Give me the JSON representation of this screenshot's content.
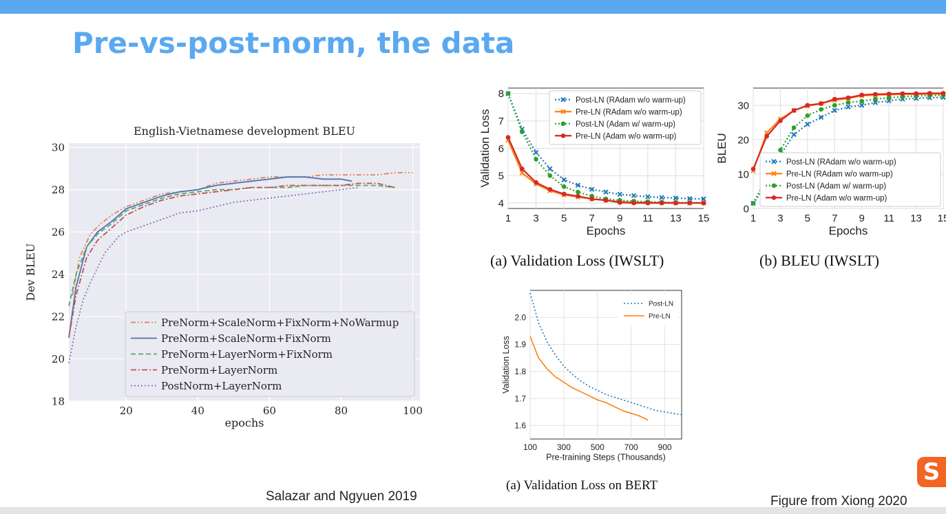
{
  "slide": {
    "title": "Pre-vs-post-norm, the data",
    "left_caption": "Salazar and Ngyuen 2019",
    "right_caption": "Figure from Xiong 2020",
    "logo_letter": "S"
  },
  "chart_data": [
    {
      "id": "dev_bleu",
      "type": "line",
      "title": "English-Vietnamese development BLEU",
      "xlabel": "epochs",
      "ylabel": "Dev BLEU",
      "xlim": [
        4,
        102
      ],
      "ylim": [
        18,
        30.2
      ],
      "xticks": [
        20,
        40,
        60,
        80,
        100
      ],
      "yticks": [
        18,
        20,
        22,
        24,
        26,
        28,
        30
      ],
      "grid": true,
      "background": "#eaeaf2",
      "legend_position": "lower-right",
      "series": [
        {
          "name": "PreNorm+ScaleNorm+FixNorm+NoWarmup",
          "color": "#dd8452",
          "dash": "dashdot-dot",
          "x": [
            5,
            7,
            10,
            13,
            16,
            20,
            25,
            30,
            35,
            40,
            45,
            50,
            55,
            60,
            65,
            70,
            75,
            80,
            85,
            90,
            95,
            100
          ],
          "y": [
            23.0,
            24.8,
            25.9,
            26.4,
            26.8,
            27.2,
            27.5,
            27.8,
            27.9,
            28.0,
            28.3,
            28.4,
            28.5,
            28.6,
            28.6,
            28.6,
            28.7,
            28.7,
            28.7,
            28.7,
            28.8,
            28.8
          ]
        },
        {
          "name": "PreNorm+ScaleNorm+FixNorm",
          "color": "#4c72b0",
          "dash": "solid",
          "x": [
            4,
            6,
            9,
            12,
            16,
            20,
            25,
            30,
            35,
            40,
            45,
            50,
            55,
            60,
            65,
            70,
            75,
            80,
            83
          ],
          "y": [
            21.0,
            23.4,
            25.3,
            26.0,
            26.5,
            27.1,
            27.4,
            27.7,
            27.9,
            28.0,
            28.2,
            28.3,
            28.4,
            28.5,
            28.6,
            28.6,
            28.5,
            28.5,
            28.4
          ]
        },
        {
          "name": "PreNorm+LayerNorm+FixNorm",
          "color": "#55a868",
          "dash": "dashed",
          "x": [
            4,
            6,
            9,
            12,
            16,
            20,
            25,
            30,
            35,
            40,
            45,
            50,
            55,
            60,
            65,
            70,
            75,
            80,
            85,
            90,
            95
          ],
          "y": [
            22.5,
            24.0,
            25.3,
            25.9,
            26.4,
            27.0,
            27.3,
            27.6,
            27.8,
            27.9,
            28.0,
            28.0,
            28.1,
            28.1,
            28.1,
            28.2,
            28.2,
            28.2,
            28.2,
            28.2,
            28.1
          ]
        },
        {
          "name": "PreNorm+LayerNorm",
          "color": "#c44e52",
          "dash": "dashdot",
          "x": [
            4,
            6,
            9,
            12,
            16,
            20,
            25,
            30,
            35,
            40,
            45,
            50,
            55,
            60,
            65,
            70,
            75,
            80,
            85,
            90,
            95
          ],
          "y": [
            21.0,
            23.0,
            24.8,
            25.6,
            26.2,
            26.8,
            27.2,
            27.5,
            27.7,
            27.8,
            27.9,
            28.0,
            28.1,
            28.1,
            28.2,
            28.2,
            28.2,
            28.2,
            28.3,
            28.3,
            28.1
          ]
        },
        {
          "name": "PostNorm+LayerNorm",
          "color": "#8172b2",
          "dash": "dotted",
          "x": [
            4,
            6,
            8,
            10,
            12,
            14,
            16,
            18,
            20,
            25,
            30,
            35,
            40,
            45,
            50,
            55,
            60,
            65,
            70,
            75,
            80,
            85
          ],
          "y": [
            19.8,
            21.5,
            22.8,
            23.6,
            24.3,
            25.0,
            25.4,
            25.8,
            26.0,
            26.3,
            26.6,
            26.9,
            27.0,
            27.2,
            27.4,
            27.5,
            27.6,
            27.7,
            27.8,
            27.9,
            28.0,
            28.1
          ]
        }
      ]
    },
    {
      "id": "iwslt_loss",
      "type": "line",
      "caption": "(a)  Validation Loss (IWSLT)",
      "xlabel": "Epochs",
      "ylabel": "Validation Loss",
      "xlim": [
        1,
        15
      ],
      "ylim": [
        3.8,
        8.2
      ],
      "xticks": [
        1,
        3,
        5,
        7,
        9,
        11,
        13,
        15
      ],
      "yticks": [
        4,
        5,
        6,
        7,
        8
      ],
      "grid": true,
      "legend_position": "upper-right",
      "series": [
        {
          "name": "Post-LN (RAdam w/o warm-up)",
          "color": "#1f77b4",
          "dash": "dotted",
          "marker": "x",
          "x": [
            1,
            2,
            3,
            4,
            5,
            6,
            7,
            8,
            9,
            10,
            11,
            12,
            13,
            14,
            15
          ],
          "y": [
            8.0,
            6.7,
            5.85,
            5.25,
            4.85,
            4.65,
            4.5,
            4.4,
            4.32,
            4.27,
            4.23,
            4.2,
            4.18,
            4.16,
            4.15
          ]
        },
        {
          "name": "Pre-LN (RAdam w/o warm-up)",
          "color": "#ff7f0e",
          "dash": "solid",
          "marker": "x",
          "x": [
            1,
            2,
            3,
            4,
            5,
            6,
            7,
            8,
            9,
            10,
            11,
            12,
            13,
            14,
            15
          ],
          "y": [
            6.3,
            5.1,
            4.7,
            4.45,
            4.3,
            4.22,
            4.15,
            4.1,
            4.05,
            4.03,
            4.02,
            4.01,
            4.0,
            4.0,
            4.0
          ]
        },
        {
          "name": "Post-LN (Adam w/ warm-up)",
          "color": "#2ca02c",
          "dash": "dotted",
          "marker": "o",
          "x": [
            1,
            2,
            3,
            4,
            5,
            6,
            7,
            8,
            9,
            10,
            11,
            12,
            13,
            14,
            15
          ],
          "y": [
            8.0,
            6.6,
            5.6,
            5.0,
            4.6,
            4.4,
            4.25,
            4.15,
            4.1,
            4.07,
            4.05,
            4.03,
            4.02,
            4.01,
            4.0
          ]
        },
        {
          "name": "Pre-LN (Adam w/o warm-up)",
          "color": "#d62728",
          "dash": "solid",
          "marker": "o",
          "x": [
            1,
            2,
            3,
            4,
            5,
            6,
            7,
            8,
            9,
            10,
            11,
            12,
            13,
            14,
            15
          ],
          "y": [
            6.4,
            5.25,
            4.75,
            4.5,
            4.33,
            4.25,
            4.15,
            4.1,
            4.02,
            4.0,
            4.0,
            4.0,
            4.0,
            4.0,
            4.0
          ]
        }
      ]
    },
    {
      "id": "iwslt_bleu",
      "type": "line",
      "caption": "(b)  BLEU (IWSLT)",
      "xlabel": "Epochs",
      "ylabel": "BLEU",
      "xlim": [
        1,
        15
      ],
      "ylim": [
        0,
        35
      ],
      "xticks": [
        1,
        3,
        5,
        7,
        9,
        11,
        13,
        15
      ],
      "yticks": [
        0,
        10,
        20,
        30
      ],
      "grid": true,
      "legend_position": "lower-right",
      "series": [
        {
          "name": "Post-LN (RAdam w/o warm-up)",
          "color": "#1f77b4",
          "dash": "dotted",
          "marker": "x",
          "x": [
            1,
            2,
            3,
            4,
            5,
            6,
            7,
            8,
            9,
            10,
            11,
            12,
            13,
            14,
            15
          ],
          "y": [
            1.5,
            7.0,
            15.5,
            21.5,
            24.5,
            26.5,
            28.5,
            29.5,
            30.0,
            30.8,
            31.3,
            31.8,
            32.0,
            32.2,
            32.3
          ]
        },
        {
          "name": "Pre-LN (RAdam w/o warm-up)",
          "color": "#ff7f0e",
          "dash": "solid",
          "marker": "x",
          "x": [
            1,
            2,
            3,
            4,
            5,
            6,
            7,
            8,
            9,
            10,
            11,
            12,
            13,
            14,
            15
          ],
          "y": [
            11.0,
            22.0,
            26.0,
            28.5,
            29.8,
            30.5,
            31.5,
            32.0,
            32.8,
            33.0,
            33.1,
            33.2,
            33.2,
            33.3,
            33.3
          ]
        },
        {
          "name": "Post-LN (Adam w/ warm-up)",
          "color": "#2ca02c",
          "dash": "dotted",
          "marker": "o",
          "x": [
            1,
            2,
            3,
            4,
            5,
            6,
            7,
            8,
            9,
            10,
            11,
            12,
            13,
            14,
            15
          ],
          "y": [
            1.5,
            9.0,
            17.0,
            23.5,
            27.0,
            28.8,
            30.0,
            30.8,
            31.2,
            31.8,
            32.2,
            32.5,
            32.7,
            32.8,
            32.9
          ]
        },
        {
          "name": "Pre-LN (Adam w/o warm-up)",
          "color": "#d62728",
          "dash": "solid",
          "marker": "o",
          "x": [
            1,
            2,
            3,
            4,
            5,
            6,
            7,
            8,
            9,
            10,
            11,
            12,
            13,
            14,
            15
          ],
          "y": [
            11.5,
            21.0,
            25.5,
            28.5,
            30.0,
            30.5,
            31.8,
            32.2,
            33.0,
            33.2,
            33.3,
            33.4,
            33.4,
            33.5,
            33.5
          ]
        }
      ]
    },
    {
      "id": "bert_loss",
      "type": "line",
      "caption": "(a)  Validation Loss on BERT",
      "xlabel": "Pre-training Steps (Thousands)",
      "ylabel": "Validation Loss",
      "xlim": [
        100,
        1000
      ],
      "ylim": [
        1.55,
        2.1
      ],
      "xticks": [
        100,
        300,
        500,
        700,
        900
      ],
      "yticks": [
        1.6,
        1.7,
        1.8,
        1.9,
        2.0
      ],
      "grid": true,
      "legend_position": "upper-right",
      "series": [
        {
          "name": "Post-LN",
          "color": "#1f77b4",
          "dash": "dotted",
          "x": [
            100,
            150,
            200,
            250,
            300,
            350,
            400,
            450,
            500,
            550,
            600,
            650,
            700,
            750,
            800,
            850,
            900,
            950,
            1000
          ],
          "y": [
            2.09,
            1.98,
            1.91,
            1.86,
            1.82,
            1.79,
            1.765,
            1.745,
            1.73,
            1.715,
            1.705,
            1.695,
            1.685,
            1.675,
            1.665,
            1.655,
            1.65,
            1.645,
            1.64
          ]
        },
        {
          "name": "Pre-LN",
          "color": "#ff7f0e",
          "dash": "solid",
          "x": [
            100,
            150,
            200,
            250,
            300,
            350,
            400,
            450,
            500,
            550,
            600,
            650,
            700,
            750,
            800
          ],
          "y": [
            1.93,
            1.85,
            1.81,
            1.78,
            1.76,
            1.74,
            1.725,
            1.71,
            1.695,
            1.685,
            1.67,
            1.655,
            1.645,
            1.635,
            1.62
          ]
        }
      ]
    }
  ]
}
